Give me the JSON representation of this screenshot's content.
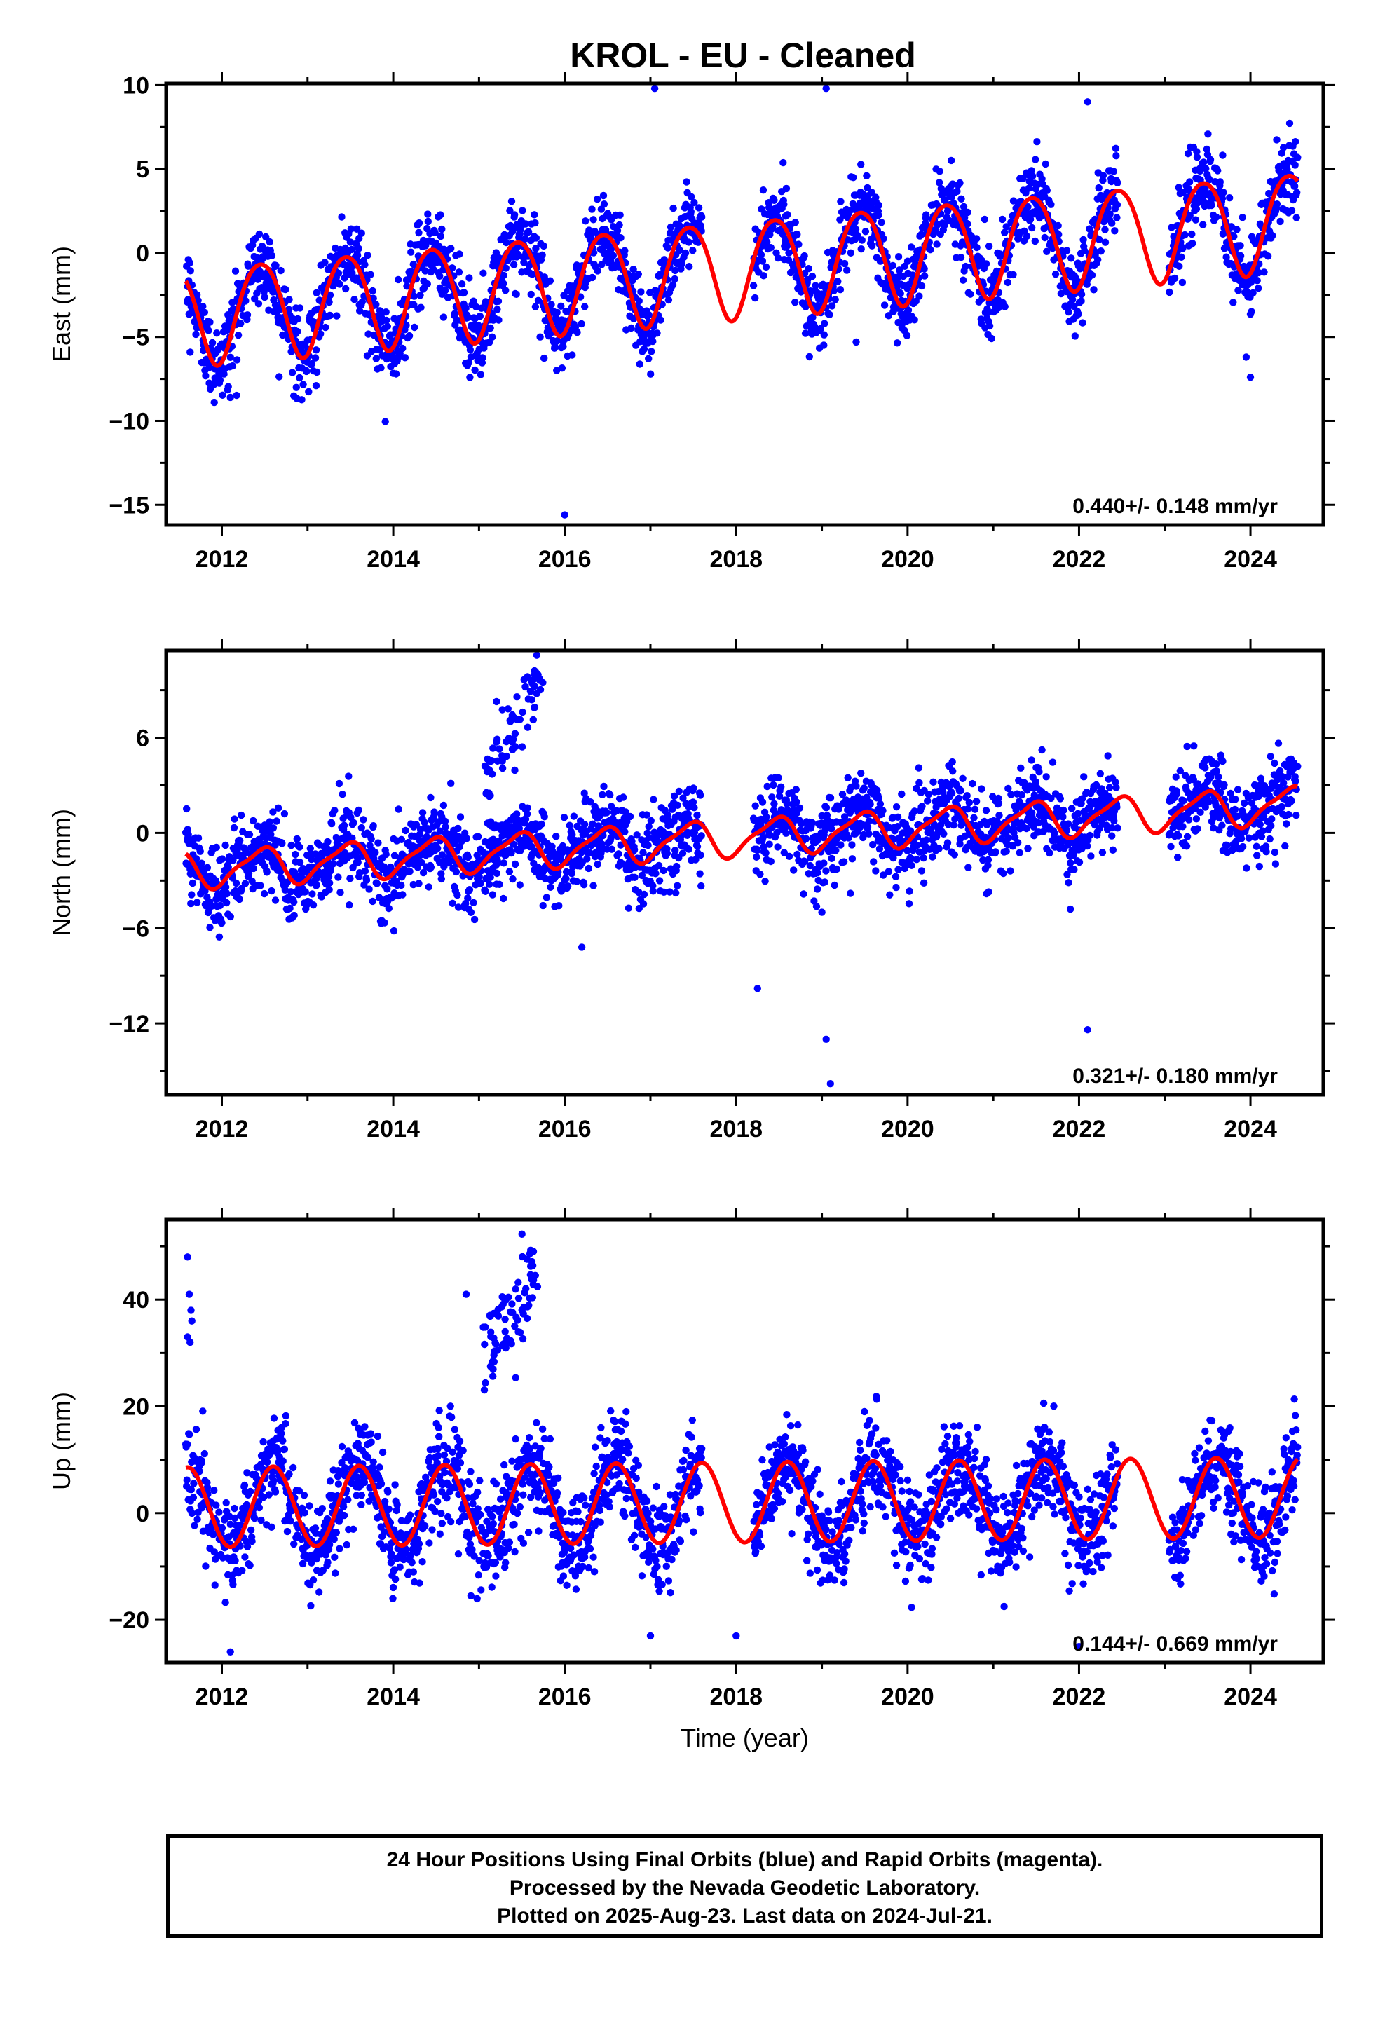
{
  "title": "KROL  - EU - Cleaned",
  "colors": {
    "points": "#0000ff",
    "model": "#ff0000",
    "axes": "#000000"
  },
  "footer": {
    "line1": "24 Hour Positions Using Final Orbits (blue) and Rapid Orbits (magenta).",
    "line2": "Processed by the Nevada Geodetic Laboratory.",
    "line3": "Plotted on 2025-Aug-23. Last data on 2024-Jul-21."
  },
  "chart_data": [
    {
      "type": "scatter",
      "ylabel": "East (mm)",
      "xlabel": "",
      "xlim": [
        2011.35,
        2024.85
      ],
      "ylim": [
        -16.2,
        10.1
      ],
      "xticks": [
        2012,
        2014,
        2016,
        2018,
        2020,
        2022,
        2024
      ],
      "yticks": [
        -15,
        -10,
        -5,
        0,
        5,
        10
      ],
      "yminor": [
        -12.5,
        -7.5,
        -2.5,
        2.5,
        7.5
      ],
      "rate_label": "0.440+/- 0.148 mm/yr",
      "model": {
        "trend_rate": 0.44,
        "offset": -0.85,
        "t0": 2018,
        "annual_amp": 2.9,
        "annual_peak": 0.45,
        "semi_amp": 0.3,
        "semi_peak": 0.2
      },
      "scatter_sd": 1.2,
      "gaps": [
        [
          2017.6,
          2018.2
        ],
        [
          2022.45,
          2023.05
        ]
      ],
      "extra_points": [
        [
          2016.0,
          -15.6
        ],
        [
          2017.05,
          9.8
        ],
        [
          2019.05,
          9.8
        ],
        [
          2022.1,
          9.0
        ],
        [
          2012.1,
          -8.6
        ],
        [
          2013.1,
          -7.9
        ],
        [
          2024.0,
          -7.4
        ],
        [
          2019.4,
          -5.3
        ],
        [
          2023.95,
          -6.2
        ]
      ],
      "series": [
        {
          "name": "",
          "values": []
        }
      ]
    },
    {
      "type": "scatter",
      "ylabel": "North (mm)",
      "xlabel": "",
      "xlim": [
        2011.35,
        2024.85
      ],
      "ylim": [
        -16.5,
        11.5
      ],
      "xticks": [
        2012,
        2014,
        2016,
        2018,
        2020,
        2022,
        2024
      ],
      "yticks": [
        -12,
        -6,
        0,
        6
      ],
      "yminor": [
        -15,
        -9,
        -3,
        3,
        9
      ],
      "rate_label": "0.321+/- 0.180 mm/yr",
      "model": {
        "trend_rate": 0.321,
        "offset": -0.3,
        "t0": 2018,
        "annual_amp": 1.1,
        "annual_peak": 0.45,
        "semi_amp": 0.3,
        "semi_peak": 0.1
      },
      "scatter_sd": 1.3,
      "gaps": [
        [
          2017.6,
          2018.2
        ],
        [
          2022.45,
          2023.05
        ]
      ],
      "extra_points": [
        [
          2019.1,
          -15.8
        ],
        [
          2019.05,
          -13.0
        ],
        [
          2018.25,
          -9.8
        ],
        [
          2022.1,
          -12.4
        ],
        [
          2021.9,
          -4.8
        ],
        [
          2019.0,
          -5.0
        ],
        [
          2016.2,
          -7.2
        ]
      ],
      "anomaly": {
        "start": 2015.05,
        "end": 2015.75,
        "from": 3.5,
        "to": 9.5,
        "n": 70
      },
      "series": [
        {
          "name": "",
          "values": []
        }
      ]
    },
    {
      "type": "scatter",
      "ylabel": "Up (mm)",
      "xlabel": "Time (year)",
      "xlim": [
        2011.35,
        2024.85
      ],
      "ylim": [
        -28,
        55
      ],
      "xticks": [
        2012,
        2014,
        2016,
        2018,
        2020,
        2022,
        2024
      ],
      "yticks": [
        -20,
        0,
        20,
        40
      ],
      "yminor": [
        -10,
        10,
        30,
        50
      ],
      "rate_label": "0.144+/- 0.669 mm/yr",
      "model": {
        "trend_rate": 0.144,
        "offset": 2.0,
        "t0": 2018,
        "annual_amp": 7.5,
        "annual_peak": 0.6,
        "semi_amp": 0.0,
        "semi_peak": 0.0
      },
      "scatter_sd": 4.5,
      "gaps": [
        [
          2017.6,
          2018.2
        ],
        [
          2022.45,
          2023.05
        ]
      ],
      "extra_points": [
        [
          2011.6,
          48
        ],
        [
          2011.62,
          41
        ],
        [
          2011.64,
          38
        ],
        [
          2011.6,
          33
        ],
        [
          2011.63,
          32
        ],
        [
          2011.65,
          36
        ],
        [
          2014.85,
          41
        ],
        [
          2012.1,
          -26
        ],
        [
          2017.0,
          -23
        ],
        [
          2018.0,
          -23
        ],
        [
          2022.0,
          -25
        ]
      ],
      "anomaly": {
        "start": 2015.05,
        "end": 2015.75,
        "from": 28,
        "to": 48,
        "n": 80
      },
      "series": [
        {
          "name": "",
          "values": []
        }
      ]
    }
  ]
}
